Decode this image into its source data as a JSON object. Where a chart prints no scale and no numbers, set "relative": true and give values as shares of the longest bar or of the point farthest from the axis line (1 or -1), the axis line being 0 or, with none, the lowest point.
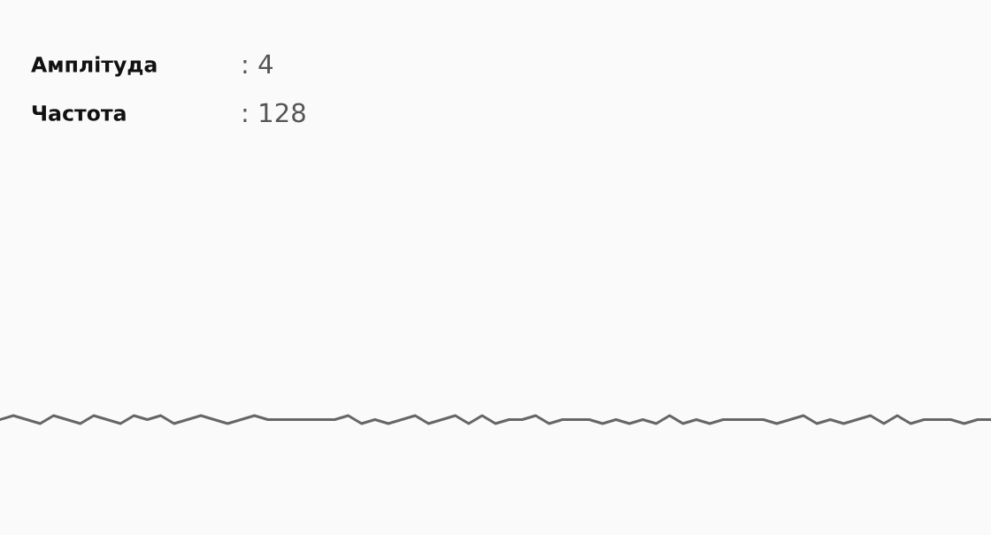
{
  "chart_data": {
    "type": "line",
    "relative": true,
    "annotations": [
      "Амплітуда",
      ": 4",
      "Частота",
      ": 128"
    ],
    "categories": [
      null,
      null,
      null,
      null,
      null,
      null,
      null,
      null,
      null,
      null,
      null,
      null,
      null,
      null,
      null,
      null,
      null,
      null,
      null,
      null,
      null,
      null,
      null,
      null,
      null,
      null,
      null,
      null,
      null,
      null,
      null,
      null,
      null,
      null,
      null,
      null,
      null,
      null,
      null,
      null,
      null,
      null,
      null,
      null,
      null,
      null,
      null,
      null,
      null,
      null,
      null,
      null,
      null,
      null,
      null,
      null,
      null,
      null,
      null,
      null,
      null,
      null,
      null,
      null,
      null,
      null,
      null,
      null,
      null,
      null,
      null,
      null,
      null,
      null,
      null
    ],
    "series": [
      {
        "color": "#666666",
        "values": [
          0.5,
          1,
          0.5,
          0,
          1,
          0.5,
          0,
          1,
          0.5,
          0,
          1,
          0.5,
          1,
          0,
          0.5,
          1,
          0.5,
          0,
          0.5,
          1,
          0.5,
          0.5,
          0.5,
          0.5,
          0.5,
          0.5,
          1,
          0,
          0.5,
          0,
          0.5,
          1,
          0,
          0.5,
          1,
          0,
          1,
          0,
          0.5,
          0.5,
          1,
          0,
          0.5,
          0.5,
          0.5,
          0,
          0.5,
          0,
          0.5,
          0,
          1,
          0,
          0.5,
          0,
          0.5,
          0.5,
          0.5,
          0.5,
          0,
          0.5,
          1,
          0,
          0.5,
          0,
          0.5,
          1,
          0,
          1,
          0,
          0.5,
          0.5,
          0.5,
          0,
          0.5,
          0.5
        ]
      }
    ],
    "marker": "none",
    "line_style": "solid"
  }
}
